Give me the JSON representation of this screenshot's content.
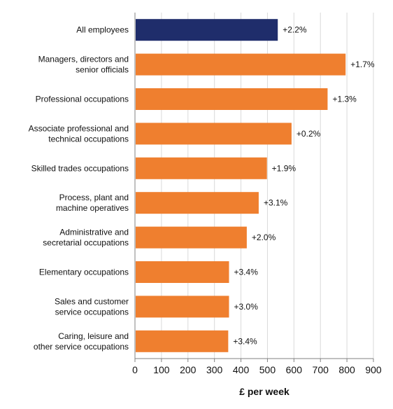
{
  "chart_data": {
    "type": "bar",
    "orientation": "horizontal",
    "categories": [
      "All employees",
      "Managers, directors and senior officials",
      "Professional occupations",
      "Associate professional and technical occupations",
      "Skilled trades occupations",
      "Process, plant and machine operatives",
      "Administrative and secretarial occupations",
      "Elementary occupations",
      "Sales and customer service occupations",
      "Caring, leisure and other service occupations"
    ],
    "category_lines": [
      [
        "All employees"
      ],
      [
        "Managers, directors and",
        "senior officials"
      ],
      [
        "Professional occupations"
      ],
      [
        "Associate professional and",
        "technical occupations"
      ],
      [
        "Skilled trades occupations"
      ],
      [
        "Process, plant and",
        "machine operatives"
      ],
      [
        "Administrative and",
        "secretarial occupations"
      ],
      [
        "Elementary occupations"
      ],
      [
        "Sales and customer",
        "service occupations"
      ],
      [
        "Caring, leisure and",
        "other service occupations"
      ]
    ],
    "values": [
      539,
      795,
      727,
      591,
      498,
      467,
      422,
      355,
      355,
      352
    ],
    "data_labels": [
      "+2.2%",
      "+1.7%",
      "+1.3%",
      "+0.2%",
      "+1.9%",
      "+3.1%",
      "+2.0%",
      "+3.4%",
      "+3.0%",
      "+3.4%"
    ],
    "colors": [
      "#1f2d6b",
      "#ef7f2f",
      "#ef7f2f",
      "#ef7f2f",
      "#ef7f2f",
      "#ef7f2f",
      "#ef7f2f",
      "#ef7f2f",
      "#ef7f2f",
      "#ef7f2f"
    ],
    "xlabel": "£ per week",
    "ylabel": "",
    "xlim": [
      0,
      900
    ],
    "xticks": [
      0,
      100,
      200,
      300,
      400,
      500,
      600,
      700,
      800,
      900
    ],
    "grid": true,
    "legend": "none"
  }
}
